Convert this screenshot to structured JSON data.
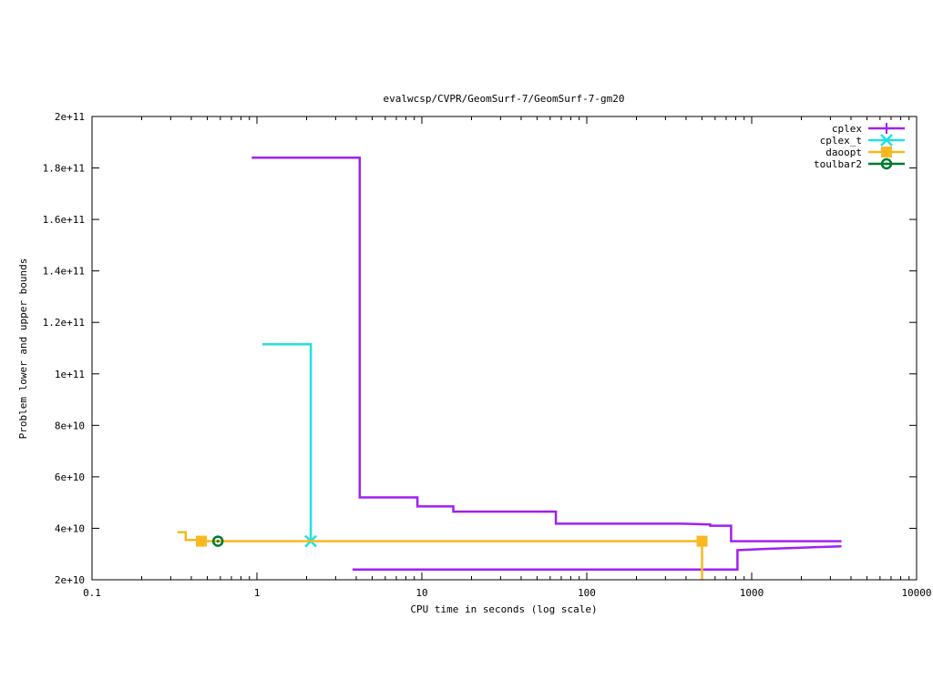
{
  "chart_data": {
    "type": "line",
    "title": "evalwcsp/CVPR/GeomSurf-7/GeomSurf-7-gm20",
    "xlabel": "CPU time in seconds (log scale)",
    "ylabel": "Problem lower and upper bounds",
    "x_scale": "log",
    "xlim": [
      0.1,
      10000
    ],
    "ylim": [
      20000000000,
      200000000000
    ],
    "x_ticks": [
      0.1,
      1,
      10,
      100,
      1000,
      10000
    ],
    "x_tick_labels": [
      "0.1",
      "1",
      "10",
      "100",
      "1000",
      "10000"
    ],
    "y_ticks": [
      20000000000,
      40000000000,
      60000000000,
      80000000000,
      100000000000,
      120000000000,
      140000000000,
      160000000000,
      180000000000,
      200000000000
    ],
    "y_tick_labels": [
      "2e+10",
      "4e+10",
      "6e+10",
      "8e+10",
      "1e+11",
      "1.2e+11",
      "1.4e+11",
      "1.6e+11",
      "1.8e+11",
      "2e+11"
    ],
    "legend_position": "top-right",
    "series": [
      {
        "name": "cplex",
        "color": "#a020f0",
        "marker": "plus",
        "upper": [
          [
            0.93,
            184000000000
          ],
          [
            4.2,
            184000000000
          ],
          [
            4.2,
            52000000000
          ],
          [
            9.4,
            52000000000
          ],
          [
            9.4,
            48500000000
          ],
          [
            15.5,
            48500000000
          ],
          [
            15.5,
            46500000000
          ],
          [
            65,
            46500000000
          ],
          [
            65,
            41800000000
          ],
          [
            380,
            41800000000
          ],
          [
            560,
            41500000000
          ],
          [
            560,
            41000000000
          ],
          [
            750,
            41000000000
          ],
          [
            750,
            35000000000
          ],
          [
            3500,
            35000000000
          ]
        ],
        "lower": [
          [
            3.8,
            24000000000
          ],
          [
            820,
            24000000000
          ],
          [
            820,
            31500000000
          ],
          [
            1200,
            32000000000
          ],
          [
            2000,
            32500000000
          ],
          [
            3500,
            33000000000
          ]
        ]
      },
      {
        "name": "cplex_t",
        "color": "#20e0e0",
        "marker": "x",
        "upper": [
          [
            1.08,
            111500000000
          ],
          [
            2.12,
            111500000000
          ],
          [
            2.12,
            35000000000
          ]
        ],
        "points": [
          [
            2.12,
            35000000000
          ]
        ]
      },
      {
        "name": "daoopt",
        "color": "#f8b820",
        "marker": "square",
        "upper": [
          [
            0.33,
            38500000000
          ],
          [
            0.37,
            38500000000
          ],
          [
            0.37,
            35500000000
          ],
          [
            0.46,
            35500000000
          ],
          [
            0.46,
            35000000000
          ],
          [
            500,
            35000000000
          ],
          [
            500,
            20000000000
          ]
        ],
        "points": [
          [
            0.46,
            35000000000
          ],
          [
            500,
            35000000000
          ]
        ]
      },
      {
        "name": "toulbar2",
        "color": "#007a30",
        "marker": "circle",
        "upper": [],
        "points": [
          [
            0.58,
            35000000000
          ]
        ]
      }
    ]
  }
}
